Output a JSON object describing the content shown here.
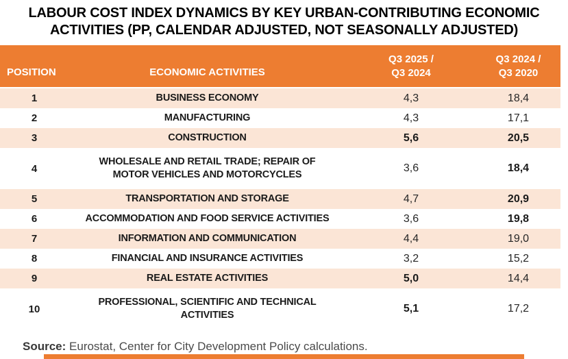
{
  "colors": {
    "accent": "#ED7D31",
    "row_shade": "#FBE5D6",
    "header_text": "#FFFFFF",
    "title_text": "#000000",
    "source_text": "#4A4A4A"
  },
  "title": {
    "line1": "LABOUR COST INDEX DYNAMICS BY KEY URBAN-CONTRIBUTING ECONOMIC",
    "line2": "ACTIVITIES (PP, CALENDAR ADJUSTED, NOT SEASONALLY ADJUSTED)"
  },
  "table": {
    "headers": {
      "position": "POSITION",
      "activities": "ECONOMIC ACTIVITIES",
      "col3_line1": "Q3 2025 /",
      "col3_line2": "Q3 2024",
      "col4_line1": "Q3 2024 /",
      "col4_line2": "Q3 2020"
    },
    "rows": [
      {
        "position": "1",
        "activity": "BUSINESS ECONOMY",
        "v1": "4,3",
        "v2": "18,4",
        "v1_bold": false,
        "v2_bold": false,
        "shaded": true,
        "tall": false
      },
      {
        "position": "2",
        "activity": "MANUFACTURING",
        "v1": "4,3",
        "v2": "17,1",
        "v1_bold": false,
        "v2_bold": false,
        "shaded": false,
        "tall": false
      },
      {
        "position": "3",
        "activity": "CONSTRUCTION",
        "v1": "5,6",
        "v2": "20,5",
        "v1_bold": true,
        "v2_bold": true,
        "shaded": true,
        "tall": false
      },
      {
        "position": "4",
        "activity": "WHOLESALE AND RETAIL TRADE; REPAIR OF MOTOR VEHICLES AND MOTORCYCLES",
        "v1": "3,6",
        "v2": "18,4",
        "v1_bold": false,
        "v2_bold": true,
        "shaded": false,
        "tall": true
      },
      {
        "position": "5",
        "activity": "TRANSPORTATION AND STORAGE",
        "v1": "4,7",
        "v2": "20,9",
        "v1_bold": false,
        "v2_bold": true,
        "shaded": true,
        "tall": false
      },
      {
        "position": "6",
        "activity": "ACCOMMODATION AND FOOD SERVICE ACTIVITIES",
        "v1": "3,6",
        "v2": "19,8",
        "v1_bold": false,
        "v2_bold": true,
        "shaded": false,
        "tall": false
      },
      {
        "position": "7",
        "activity": "INFORMATION AND COMMUNICATION",
        "v1": "4,4",
        "v2": "19,0",
        "v1_bold": false,
        "v2_bold": false,
        "shaded": true,
        "tall": false
      },
      {
        "position": "8",
        "activity": "FINANCIAL AND INSURANCE ACTIVITIES",
        "v1": "3,2",
        "v2": "15,2",
        "v1_bold": false,
        "v2_bold": false,
        "shaded": false,
        "tall": false
      },
      {
        "position": "9",
        "activity": "REAL ESTATE ACTIVITIES",
        "v1": "5,0",
        "v2": "14,4",
        "v1_bold": true,
        "v2_bold": false,
        "shaded": true,
        "tall": false
      },
      {
        "position": "10",
        "activity": "PROFESSIONAL, SCIENTIFIC AND TECHNICAL ACTIVITIES",
        "v1": "5,1",
        "v2": "17,2",
        "v1_bold": true,
        "v2_bold": false,
        "shaded": false,
        "tall": true
      }
    ]
  },
  "source": {
    "label": "Source:",
    "text": " Eurostat, Center for City Development Policy calculations."
  },
  "chart_data": {
    "type": "table",
    "title": "LABOUR COST INDEX DYNAMICS BY KEY URBAN-CONTRIBUTING ECONOMIC ACTIVITIES (PP, CALENDAR ADJUSTED, NOT SEASONALLY ADJUSTED)",
    "columns": [
      "POSITION",
      "ECONOMIC ACTIVITIES",
      "Q3 2025 / Q3 2024",
      "Q3 2024 / Q3 2020"
    ],
    "rows": [
      [
        1,
        "BUSINESS ECONOMY",
        4.3,
        18.4
      ],
      [
        2,
        "MANUFACTURING",
        4.3,
        17.1
      ],
      [
        3,
        "CONSTRUCTION",
        5.6,
        20.5
      ],
      [
        4,
        "WHOLESALE AND RETAIL TRADE; REPAIR OF MOTOR VEHICLES AND MOTORCYCLES",
        3.6,
        18.4
      ],
      [
        5,
        "TRANSPORTATION AND STORAGE",
        4.7,
        20.9
      ],
      [
        6,
        "ACCOMMODATION AND FOOD SERVICE ACTIVITIES",
        3.6,
        19.8
      ],
      [
        7,
        "INFORMATION AND COMMUNICATION",
        4.4,
        19.0
      ],
      [
        8,
        "FINANCIAL AND INSURANCE ACTIVITIES",
        3.2,
        15.2
      ],
      [
        9,
        "REAL ESTATE ACTIVITIES",
        5.0,
        14.4
      ],
      [
        10,
        "PROFESSIONAL, SCIENTIFIC AND TECHNICAL ACTIVITIES",
        5.1,
        17.2
      ]
    ],
    "bold_values": [
      "5,6",
      "20,5",
      "18,4 (row 4)",
      "20,9",
      "19,8",
      "5,0",
      "5,1"
    ],
    "source": "Source: Eurostat, Center for City Development Policy calculations."
  }
}
